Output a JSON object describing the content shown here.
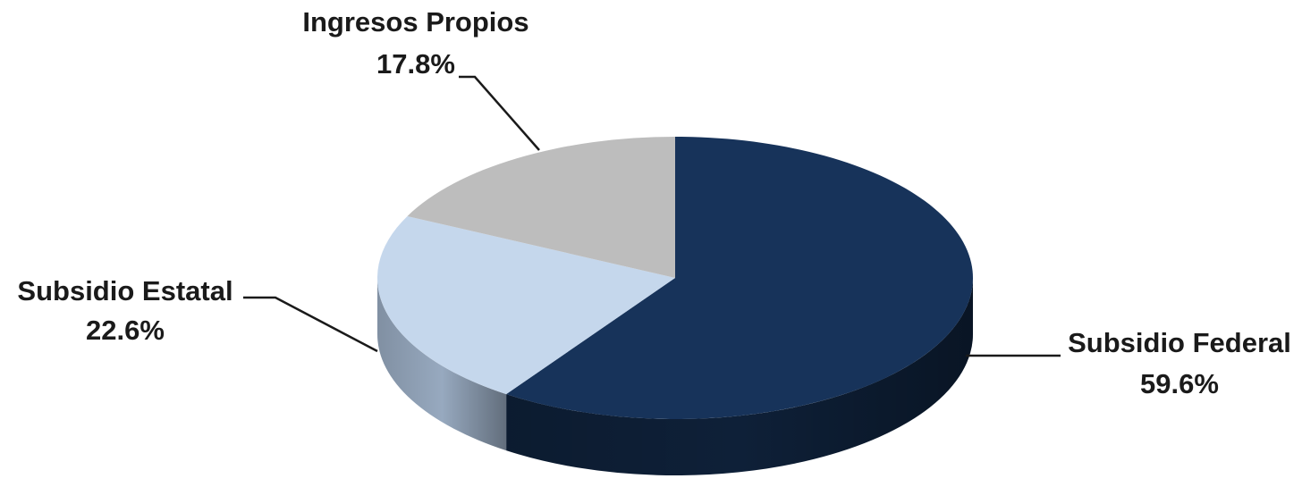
{
  "chart_data": {
    "type": "pie",
    "style": "3d",
    "title": "",
    "start": "12 o'clock",
    "direction": "clockwise",
    "slices": [
      {
        "label": "Subsidio Federal",
        "value": 59.6,
        "value_label": "59.6%",
        "color": "#17335a",
        "side_color": "#0e2038"
      },
      {
        "label": "Subsidio Estatal",
        "value": 22.6,
        "value_label": "22.6%",
        "color": "#c5d7ec",
        "side_color": "#97a9bf"
      },
      {
        "label": "Ingresos Propios",
        "value": 17.8,
        "value_label": "17.8%",
        "color": "#bdbdbd",
        "side_color": "#8e8e8e"
      }
    ]
  }
}
